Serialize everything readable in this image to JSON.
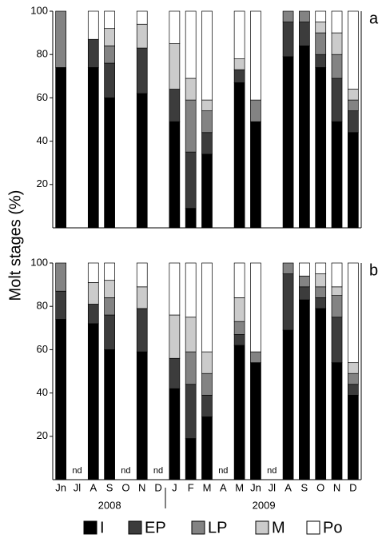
{
  "chart_data": [
    {
      "type": "bar",
      "stacked": true,
      "label": "a",
      "ylabel": "Molt stages (%)",
      "ylim": [
        0,
        100
      ],
      "yticks": [
        20,
        40,
        60,
        80,
        100
      ],
      "series": [
        {
          "name": "I",
          "color": "#000000",
          "values": [
            74,
            null,
            74,
            60,
            null,
            62,
            null,
            49,
            9,
            34,
            null,
            67,
            49,
            null,
            79,
            84,
            74,
            49,
            44
          ]
        },
        {
          "name": "EP",
          "color": "#3c3c3c",
          "values": [
            0,
            null,
            13,
            16,
            null,
            21,
            null,
            15,
            26,
            10,
            null,
            6,
            0,
            null,
            16,
            11,
            6,
            20,
            10
          ]
        },
        {
          "name": "LP",
          "color": "#838383",
          "values": [
            26,
            null,
            0,
            8,
            null,
            0,
            null,
            0,
            24,
            10,
            null,
            0,
            10,
            null,
            5,
            5,
            10,
            11,
            5
          ]
        },
        {
          "name": "M",
          "color": "#cbcbcb",
          "values": [
            0,
            null,
            0,
            8,
            null,
            11,
            null,
            21,
            10,
            5,
            null,
            5,
            0,
            null,
            0,
            0,
            5,
            10,
            5
          ]
        },
        {
          "name": "Po",
          "color": "#ffffff",
          "values": [
            0,
            null,
            13,
            8,
            null,
            6,
            null,
            15,
            31,
            41,
            null,
            22,
            41,
            null,
            0,
            0,
            5,
            10,
            36
          ]
        }
      ]
    },
    {
      "type": "bar",
      "stacked": true,
      "label": "b",
      "categories": [
        "Jn",
        "Jl",
        "A",
        "S",
        "O",
        "N",
        "D",
        "J",
        "F",
        "M",
        "A",
        "M",
        "Jn",
        "Jl",
        "A",
        "S",
        "O",
        "N",
        "D"
      ],
      "value_labels": [
        null,
        "nd",
        null,
        null,
        "nd",
        null,
        "nd",
        null,
        null,
        null,
        "nd",
        null,
        null,
        "nd",
        null,
        null,
        null,
        null,
        null
      ],
      "x_group_labels": [
        "2008",
        "2009"
      ],
      "ylim": [
        0,
        100
      ],
      "yticks": [
        20,
        40,
        60,
        80,
        100
      ],
      "series": [
        {
          "color": "#000000",
          "values": [
            74,
            null,
            72,
            60,
            null,
            59,
            null,
            42,
            19,
            29,
            null,
            62,
            54,
            null,
            69,
            83,
            79,
            54,
            39
          ]
        },
        {
          "color": "#3c3c3c",
          "values": [
            13,
            null,
            9,
            16,
            null,
            20,
            null,
            14,
            25,
            10,
            null,
            5,
            0,
            null,
            26,
            6,
            5,
            21,
            5
          ]
        },
        {
          "color": "#838383",
          "values": [
            13,
            null,
            0,
            8,
            null,
            0,
            null,
            0,
            15,
            10,
            null,
            6,
            5,
            null,
            5,
            5,
            5,
            10,
            5
          ]
        },
        {
          "color": "#cbcbcb",
          "values": [
            0,
            null,
            10,
            8,
            null,
            10,
            null,
            20,
            16,
            10,
            null,
            11,
            0,
            null,
            0,
            0,
            6,
            4,
            5
          ]
        },
        {
          "color": "#ffffff",
          "values": [
            0,
            null,
            9,
            8,
            null,
            11,
            null,
            24,
            25,
            41,
            null,
            16,
            41,
            null,
            0,
            6,
            5,
            11,
            46
          ]
        }
      ]
    }
  ]
}
